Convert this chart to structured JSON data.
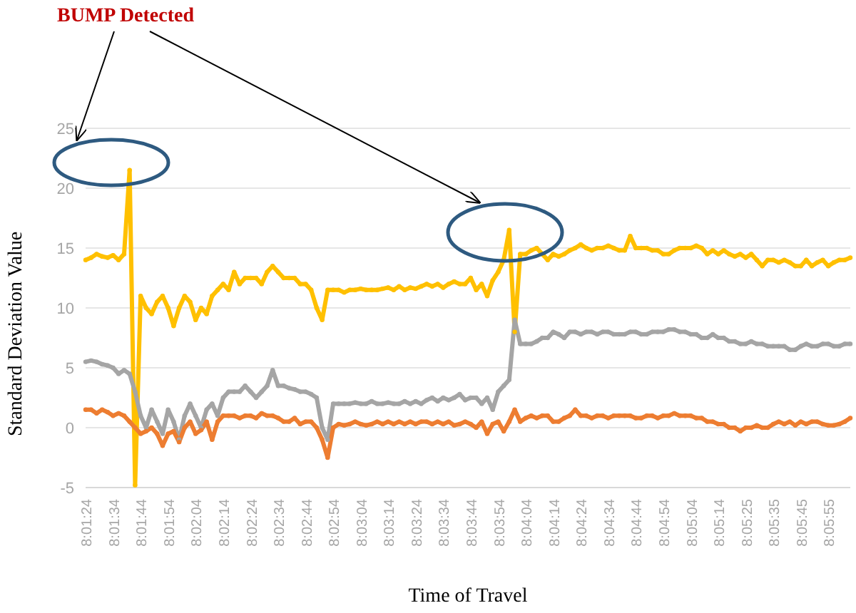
{
  "chart_data": {
    "type": "line",
    "xlabel": "Time of Travel",
    "ylabel": "Standard Deviation Value",
    "annotations": [
      "BUMP Detected"
    ],
    "categories": [
      "8:01:24",
      null,
      null,
      null,
      null,
      "8:01:34",
      null,
      null,
      null,
      null,
      "8:01:44",
      null,
      null,
      null,
      null,
      "8:01:54",
      null,
      null,
      null,
      null,
      "8:02:04",
      null,
      null,
      null,
      null,
      "8:02:14",
      null,
      null,
      null,
      null,
      "8:02:24",
      null,
      null,
      null,
      null,
      "8:02:34",
      null,
      null,
      null,
      null,
      "8:02:44",
      null,
      null,
      null,
      null,
      "8:02:54",
      null,
      null,
      null,
      null,
      "8:03:04",
      null,
      null,
      null,
      null,
      "8:03:14",
      null,
      null,
      null,
      null,
      "8:03:24",
      null,
      null,
      null,
      null,
      "8:03:34",
      null,
      null,
      null,
      null,
      "8:03:44",
      null,
      null,
      null,
      null,
      "8:03:54",
      null,
      null,
      null,
      null,
      "8:04:04",
      null,
      null,
      null,
      null,
      "8:04:14",
      null,
      null,
      null,
      null,
      "8:04:24",
      null,
      null,
      null,
      null,
      "8:04:34",
      null,
      null,
      null,
      null,
      "8:04:44",
      null,
      null,
      null,
      null,
      "8:04:54",
      null,
      null,
      null,
      null,
      "8:05:04",
      null,
      null,
      null,
      null,
      "8:05:14",
      null,
      null,
      null,
      null,
      "8:05:25",
      null,
      null,
      null,
      null,
      "8:05:35",
      null,
      null,
      null,
      null,
      "8:05:45",
      null,
      null,
      null,
      null,
      "8:05:55",
      null,
      null,
      null,
      null
    ],
    "series": [
      {
        "color": "#ffc000",
        "values": [
          14,
          14.2,
          14.5,
          14.3,
          14.2,
          14.4,
          14,
          14.5,
          21.5,
          -4.8,
          11,
          10,
          9.5,
          10.5,
          11,
          10,
          8.5,
          10,
          11,
          10.5,
          9,
          10,
          9.5,
          11,
          11.5,
          12,
          11.5,
          13,
          12,
          12.5,
          12.5,
          12.5,
          12,
          13,
          13.5,
          13,
          12.5,
          12.5,
          12.5,
          12,
          12,
          11.5,
          10,
          9,
          11.5,
          11.5,
          11.5,
          11.3,
          11.5,
          11.5,
          11.6,
          11.5,
          11.5,
          11.5,
          11.6,
          11.7,
          11.5,
          11.8,
          11.5,
          11.7,
          11.6,
          11.8,
          12,
          11.8,
          12,
          11.7,
          12,
          12.2,
          12,
          12,
          12.5,
          11.5,
          12,
          11,
          12.3,
          13,
          14,
          16.5,
          8,
          14.5,
          14.5,
          14.8,
          15,
          14.5,
          14,
          14.5,
          14.3,
          14.5,
          14.8,
          15,
          15.3,
          15,
          14.8,
          15,
          15,
          15.2,
          15,
          14.8,
          14.8,
          16,
          15,
          15,
          15,
          14.8,
          14.8,
          14.5,
          14.5,
          14.8,
          15,
          15,
          15,
          15.2,
          15,
          14.5,
          14.8,
          14.5,
          14.8,
          14.5,
          14.3,
          14.5,
          14.2,
          14.5,
          14,
          13.5,
          14,
          14,
          13.8,
          14,
          13.8,
          13.5,
          13.5,
          14,
          13.5,
          13.8,
          14,
          13.5,
          13.8,
          14,
          14,
          14.2
        ]
      },
      {
        "color": "#a5a5a5",
        "values": [
          5.5,
          5.6,
          5.5,
          5.3,
          5.2,
          5,
          4.5,
          4.8,
          4.5,
          3,
          1,
          0,
          1.5,
          0.5,
          -0.5,
          1.5,
          0.5,
          -1,
          1,
          2,
          1,
          0,
          1.5,
          2,
          1,
          2.5,
          3,
          3,
          3,
          3.5,
          3,
          2.5,
          3,
          3.5,
          4.8,
          3.5,
          3.5,
          3.3,
          3.2,
          3,
          3,
          2.8,
          2.5,
          0,
          -1,
          2,
          2,
          2,
          2,
          2.1,
          2,
          2,
          2.2,
          2,
          2,
          2.1,
          2,
          2,
          2.2,
          2,
          2.2,
          2,
          2.3,
          2.5,
          2.2,
          2.5,
          2.3,
          2.5,
          2.8,
          2.3,
          2.5,
          2.5,
          2,
          2.5,
          1.5,
          3,
          3.5,
          4,
          9,
          7,
          7,
          7,
          7.2,
          7.5,
          7.5,
          8,
          7.8,
          7.5,
          8,
          8,
          7.8,
          8,
          8,
          7.8,
          8,
          8,
          7.8,
          7.8,
          7.8,
          8,
          8,
          7.8,
          7.8,
          8,
          8,
          8,
          8.2,
          8.2,
          8,
          8,
          7.8,
          7.8,
          7.5,
          7.5,
          7.8,
          7.5,
          7.5,
          7.2,
          7.2,
          7,
          7,
          7.2,
          7,
          7,
          6.8,
          6.8,
          6.8,
          6.8,
          6.5,
          6.5,
          6.8,
          7,
          6.8,
          6.8,
          7,
          7,
          6.8,
          6.8,
          7,
          7
        ]
      },
      {
        "color": "#ed7d31",
        "values": [
          1.5,
          1.5,
          1.2,
          1.5,
          1.3,
          1,
          1.2,
          1,
          0.5,
          0,
          -0.5,
          -0.3,
          0,
          -0.5,
          -1.5,
          -0.5,
          -0.3,
          -1.2,
          0,
          0.5,
          -0.5,
          -0.2,
          0.5,
          -1,
          0.5,
          1,
          1,
          1,
          0.8,
          1,
          1,
          0.8,
          1.2,
          1,
          1,
          0.8,
          0.5,
          0.5,
          0.8,
          0.3,
          0.5,
          0.5,
          0,
          -1,
          -2.5,
          0,
          0.3,
          0.2,
          0.3,
          0.5,
          0.3,
          0.2,
          0.3,
          0.5,
          0.3,
          0.5,
          0.3,
          0.5,
          0.3,
          0.5,
          0.3,
          0.5,
          0.5,
          0.3,
          0.5,
          0.3,
          0.5,
          0.2,
          0.3,
          0.5,
          0.3,
          0,
          0.5,
          -0.5,
          0.3,
          0.5,
          -0.3,
          0.5,
          1.5,
          0.5,
          0.8,
          1,
          0.8,
          1,
          1,
          0.5,
          0.5,
          0.8,
          1,
          1.5,
          1,
          1,
          0.8,
          1,
          1,
          0.8,
          1,
          1,
          1,
          1,
          0.8,
          0.8,
          1,
          1,
          0.8,
          1,
          1,
          1.2,
          1,
          1,
          1,
          0.8,
          0.8,
          0.5,
          0.5,
          0.3,
          0.3,
          0,
          0,
          -0.3,
          0,
          0,
          0.2,
          0,
          0,
          0.3,
          0.5,
          0.3,
          0.5,
          0.2,
          0.5,
          0.3,
          0.5,
          0.5,
          0.3,
          0.2,
          0.2,
          0.3,
          0.5,
          0.8
        ]
      }
    ],
    "ylim": [
      -5,
      25
    ],
    "yticks": [
      -5,
      0,
      5,
      10,
      15,
      20,
      25
    ],
    "grid": "y",
    "marker": "circle",
    "line_style": "solid"
  }
}
